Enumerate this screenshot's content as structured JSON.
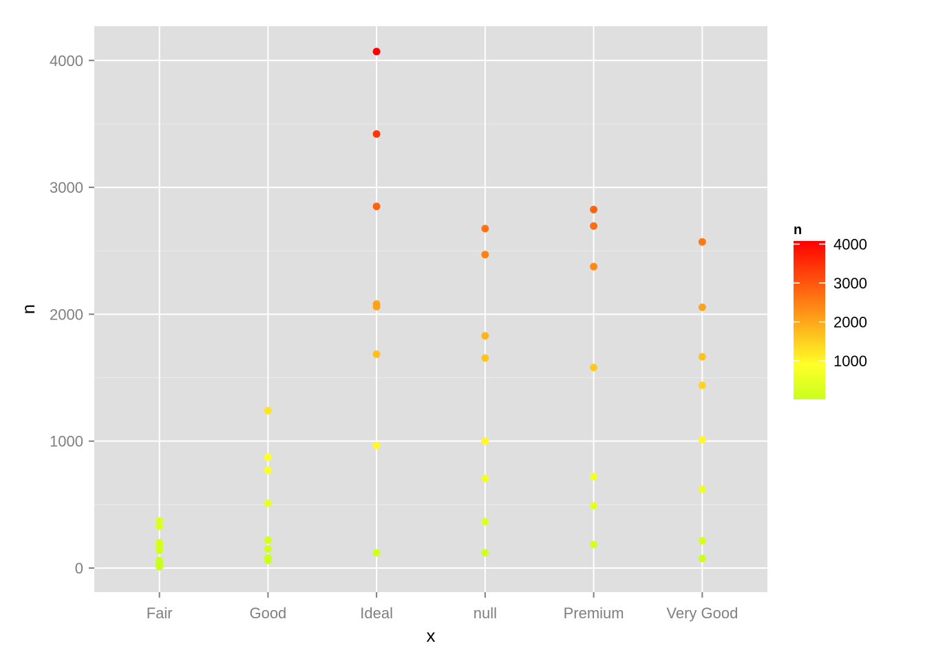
{
  "chart_data": {
    "type": "scatter",
    "xlabel": "x",
    "ylabel": "n",
    "categories": [
      "Fair",
      "Good",
      "Ideal",
      "null",
      "Premium",
      "Very Good"
    ],
    "ylim": [
      -190,
      4270
    ],
    "yticks": [
      0,
      1000,
      2000,
      3000,
      4000
    ],
    "grid": true,
    "legend": {
      "title": "n",
      "position": "right",
      "type": "colorbar",
      "ticks": [
        1000,
        2000,
        3000,
        4000
      ],
      "range": [
        10,
        4080
      ],
      "colors": {
        "low": "#c8ff1e",
        "mid": "#ffff28",
        "high": "#ff0000"
      }
    },
    "colors": {
      "panel": "#dfdfdf",
      "grid_major": "#ffffff",
      "grid_minor": "#ececec"
    },
    "points": [
      {
        "x": "Fair",
        "y": 370
      },
      {
        "x": "Fair",
        "y": 330
      },
      {
        "x": "Fair",
        "y": 200
      },
      {
        "x": "Fair",
        "y": 175
      },
      {
        "x": "Fair",
        "y": 140
      },
      {
        "x": "Fair",
        "y": 60
      },
      {
        "x": "Fair",
        "y": 30
      },
      {
        "x": "Fair",
        "y": 10
      },
      {
        "x": "Good",
        "y": 1240
      },
      {
        "x": "Good",
        "y": 875
      },
      {
        "x": "Good",
        "y": 770
      },
      {
        "x": "Good",
        "y": 510
      },
      {
        "x": "Good",
        "y": 220
      },
      {
        "x": "Good",
        "y": 150
      },
      {
        "x": "Good",
        "y": 80
      },
      {
        "x": "Good",
        "y": 60
      },
      {
        "x": "Ideal",
        "y": 4070
      },
      {
        "x": "Ideal",
        "y": 3420
      },
      {
        "x": "Ideal",
        "y": 2850
      },
      {
        "x": "Ideal",
        "y": 2080
      },
      {
        "x": "Ideal",
        "y": 2060
      },
      {
        "x": "Ideal",
        "y": 1685
      },
      {
        "x": "Ideal",
        "y": 965
      },
      {
        "x": "Ideal",
        "y": 120
      },
      {
        "x": "null",
        "y": 2675
      },
      {
        "x": "null",
        "y": 2470
      },
      {
        "x": "null",
        "y": 1830
      },
      {
        "x": "null",
        "y": 1655
      },
      {
        "x": "null",
        "y": 1000
      },
      {
        "x": "null",
        "y": 705
      },
      {
        "x": "null",
        "y": 365
      },
      {
        "x": "null",
        "y": 120
      },
      {
        "x": "Premium",
        "y": 2825
      },
      {
        "x": "Premium",
        "y": 2695
      },
      {
        "x": "Premium",
        "y": 2375
      },
      {
        "x": "Premium",
        "y": 1580
      },
      {
        "x": "Premium",
        "y": 720
      },
      {
        "x": "Premium",
        "y": 490
      },
      {
        "x": "Premium",
        "y": 185
      },
      {
        "x": "Very Good",
        "y": 2570
      },
      {
        "x": "Very Good",
        "y": 2055
      },
      {
        "x": "Very Good",
        "y": 1665
      },
      {
        "x": "Very Good",
        "y": 1440
      },
      {
        "x": "Very Good",
        "y": 1010
      },
      {
        "x": "Very Good",
        "y": 620
      },
      {
        "x": "Very Good",
        "y": 215
      },
      {
        "x": "Very Good",
        "y": 75
      }
    ]
  }
}
